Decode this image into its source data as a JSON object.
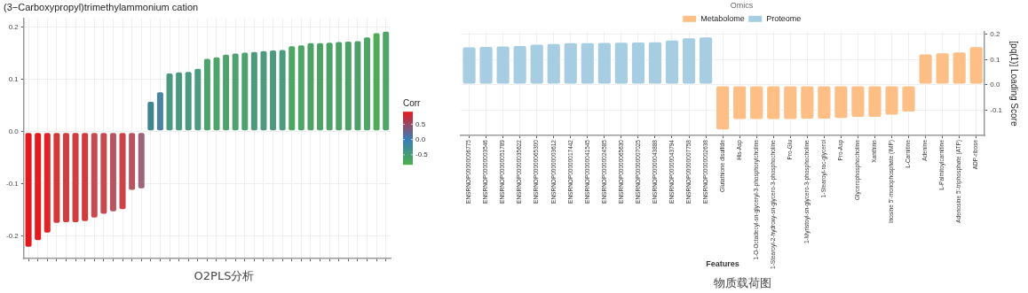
{
  "chart_data": [
    {
      "type": "bar",
      "title": "(3−Carboxypropyl)trimethylammonium cation",
      "categories": [
        null,
        null,
        null,
        null,
        null,
        null,
        null,
        null,
        null,
        null,
        null,
        null,
        null,
        null,
        null,
        null,
        null,
        null,
        null,
        null,
        null,
        null,
        null,
        null,
        null,
        null,
        null,
        null,
        null,
        null,
        null,
        null,
        null,
        null,
        null,
        null,
        null,
        null,
        null
      ],
      "values": [
        -0.222,
        -0.209,
        -0.195,
        -0.176,
        -0.175,
        -0.175,
        -0.173,
        -0.166,
        -0.159,
        -0.154,
        -0.15,
        -0.113,
        -0.11,
        0.059,
        0.077,
        0.113,
        0.115,
        0.116,
        0.122,
        0.141,
        0.144,
        0.149,
        0.151,
        0.153,
        0.154,
        0.156,
        0.157,
        0.158,
        0.165,
        0.167,
        0.171,
        0.171,
        0.172,
        0.173,
        0.174,
        0.175,
        0.182,
        0.19,
        0.193
      ],
      "colors": [
        "#e31a1c",
        "#e31a1e",
        "#df2427",
        "#d2393b",
        "#cf3e40",
        "#cf3e40",
        "#d03c3e",
        "#c74a50",
        "#c64b51",
        "#b85660",
        "#cd4244",
        "#b65560",
        "#9e6478",
        "#40868f",
        "#4a84a0",
        "#4a9a80",
        "#4b9a80",
        "#4b9a80",
        "#4b9a82",
        "#4fa26b",
        "#4fa46a",
        "#4fa26c",
        "#4fa270",
        "#4fa26e",
        "#4d9a7c",
        "#4d9a7e",
        "#4d9a7e",
        "#4d9a7e",
        "#4ea564",
        "#4ea564",
        "#4fa266",
        "#4fa266",
        "#4fa266",
        "#4fa266",
        "#4ea068",
        "#4ea068",
        "#4ea565",
        "#4fab56",
        "#4fa566"
      ],
      "ylim": [
        -0.243,
        0.216
      ],
      "yticks": [
        -0.2,
        -0.1,
        {
          "value": 0,
          "label": "0.0"
        },
        0.1,
        0.2
      ],
      "clabel": "Corr",
      "clim": [
        -0.83,
        0.91
      ],
      "cticks": [
        -0.5,
        {
          "value": 0,
          "label": "0.0"
        },
        0.5
      ],
      "grid": true,
      "legend": false,
      "tick_labels": "y",
      "annotations": [
        "O2PLS分析"
      ]
    },
    {
      "type": "bar",
      "xlabel": "Features",
      "ylabel": "[pq(1)] Loading Score",
      "legend_title": "Omics",
      "legend": "top",
      "grid": true,
      "categories": [
        "ENSRNOP00000006775",
        "ENSRNOP00000003546",
        "ENSRNOP00000051789",
        "ENSRNOP00000035622",
        "ENSRNOP00000065300",
        "ENSRNOP00000003612",
        "ENSRNOP00000017442",
        "ENSRNOP00000041545",
        "ENSRNOP00000024585",
        "ENSRNOP00000065630",
        "ENSRNOP00000007025",
        "ENSRNOP00000043888",
        "ENSRNOP00000043794",
        "ENSRNOP00000007758",
        "ENSRNOP00000002638",
        "Glutathione disulfide",
        "His-Asp",
        "1-O-Octadecyl-sn-glyceryl-3-phosphorylcholine",
        "1-Stearoyl-2-hydroxy-sn-glycero-3-phosphocholine",
        "Pro-Glu",
        "1-Myristoyl-sn-glycero-3-phosphocholine",
        "1-Stearoyl-rac-glycerol",
        "Pro-Asp",
        "Glycerophosphocholine",
        "Xanthine",
        "Inosine 5'-monophosphate (IMP)",
        "L-Carnitine",
        "Adenine",
        "L-Palmitoylcarnitine",
        "Adenosine 5'-triphosphate (ATP)",
        "ADP-ribose"
      ],
      "series": [
        {
          "name": "Metabolome",
          "color": "#fdbf85",
          "values": [
            null,
            null,
            null,
            null,
            null,
            null,
            null,
            null,
            null,
            null,
            null,
            null,
            null,
            null,
            null,
            -0.18,
            -0.139,
            -0.139,
            -0.139,
            -0.139,
            -0.137,
            -0.137,
            -0.134,
            -0.13,
            -0.13,
            -0.121,
            -0.109,
            0.124,
            0.129,
            0.132,
            0.153
          ]
        },
        {
          "name": "Proteome",
          "color": "#a6cde2",
          "values": [
            0.152,
            0.154,
            0.156,
            0.158,
            0.163,
            0.166,
            0.169,
            0.169,
            0.17,
            0.171,
            0.172,
            0.173,
            0.18,
            0.188,
            0.192,
            null,
            null,
            null,
            null,
            null,
            null,
            null,
            null,
            null,
            null,
            null,
            null,
            null,
            null,
            null,
            null
          ]
        }
      ],
      "ylim": [
        -0.2,
        0.211
      ],
      "yticks": [
        -0.1,
        {
          "value": 0,
          "label": "0.0"
        },
        0.1,
        0.2
      ],
      "annotations": [
        "物质载荷图"
      ]
    }
  ]
}
